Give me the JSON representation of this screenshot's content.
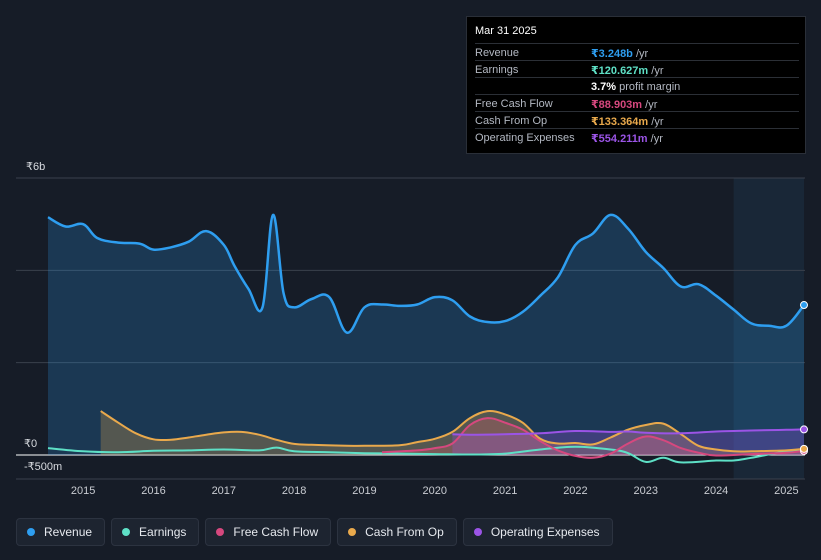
{
  "tooltip": {
    "date": "Mar 31 2025",
    "rows": [
      {
        "label": "Revenue",
        "value": "₹3.248b",
        "unit": "/yr",
        "color": "#2e9ef0"
      },
      {
        "label": "Earnings",
        "value": "₹120.627m",
        "unit": "/yr",
        "color": "#5ee0c6"
      },
      {
        "label": "",
        "value": "3.7%",
        "unit": "profit margin",
        "color": "#ffffff"
      },
      {
        "label": "Free Cash Flow",
        "value": "₹88.903m",
        "unit": "/yr",
        "color": "#d6487e"
      },
      {
        "label": "Cash From Op",
        "value": "₹133.364m",
        "unit": "/yr",
        "color": "#e9a94c"
      },
      {
        "label": "Operating Expenses",
        "value": "₹554.211m",
        "unit": "/yr",
        "color": "#9b54e6"
      }
    ]
  },
  "axis": {
    "top_label": "₹6b",
    "zero_label": "₹0",
    "bottom_label": "-₹500m"
  },
  "legend": [
    {
      "label": "Revenue",
      "color": "#2e9ef0"
    },
    {
      "label": "Earnings",
      "color": "#5ee0c6"
    },
    {
      "label": "Free Cash Flow",
      "color": "#d6487e"
    },
    {
      "label": "Cash From Op",
      "color": "#e9a94c"
    },
    {
      "label": "Operating Expenses",
      "color": "#9b54e6"
    }
  ],
  "chart_data": {
    "type": "area",
    "title": "",
    "xlabel": "",
    "ylabel": "",
    "ylim": [
      -500,
      6000
    ],
    "xlim": [
      2014.5,
      2025.25
    ],
    "xticks": [
      "2015",
      "2016",
      "2017",
      "2018",
      "2019",
      "2020",
      "2021",
      "2022",
      "2023",
      "2024",
      "2025"
    ],
    "highlight_range": [
      2024.25,
      2025.25
    ],
    "series": [
      {
        "name": "Revenue",
        "color": "#2e9ef0",
        "fill": true,
        "points": [
          [
            2014.5,
            5150
          ],
          [
            2014.75,
            4950
          ],
          [
            2015.0,
            5000
          ],
          [
            2015.2,
            4700
          ],
          [
            2015.5,
            4600
          ],
          [
            2015.8,
            4580
          ],
          [
            2016.0,
            4450
          ],
          [
            2016.25,
            4500
          ],
          [
            2016.5,
            4620
          ],
          [
            2016.75,
            4850
          ],
          [
            2017.0,
            4550
          ],
          [
            2017.15,
            4100
          ],
          [
            2017.35,
            3600
          ],
          [
            2017.55,
            3200
          ],
          [
            2017.7,
            5200
          ],
          [
            2017.85,
            3500
          ],
          [
            2018.0,
            3200
          ],
          [
            2018.25,
            3380
          ],
          [
            2018.5,
            3420
          ],
          [
            2018.75,
            2650
          ],
          [
            2019.0,
            3200
          ],
          [
            2019.25,
            3260
          ],
          [
            2019.5,
            3230
          ],
          [
            2019.75,
            3260
          ],
          [
            2020.0,
            3420
          ],
          [
            2020.25,
            3350
          ],
          [
            2020.5,
            3000
          ],
          [
            2020.75,
            2880
          ],
          [
            2021.0,
            2900
          ],
          [
            2021.25,
            3100
          ],
          [
            2021.5,
            3450
          ],
          [
            2021.75,
            3850
          ],
          [
            2022.0,
            4550
          ],
          [
            2022.25,
            4800
          ],
          [
            2022.5,
            5200
          ],
          [
            2022.75,
            4900
          ],
          [
            2023.0,
            4400
          ],
          [
            2023.25,
            4050
          ],
          [
            2023.5,
            3650
          ],
          [
            2023.75,
            3700
          ],
          [
            2024.0,
            3450
          ],
          [
            2024.25,
            3150
          ],
          [
            2024.5,
            2850
          ],
          [
            2024.75,
            2800
          ],
          [
            2025.0,
            2800
          ],
          [
            2025.25,
            3248
          ]
        ]
      },
      {
        "name": "Earnings",
        "color": "#5ee0c6",
        "fill": false,
        "points": [
          [
            2014.5,
            150
          ],
          [
            2015.0,
            80
          ],
          [
            2015.5,
            60
          ],
          [
            2016.0,
            90
          ],
          [
            2016.5,
            100
          ],
          [
            2017.0,
            120
          ],
          [
            2017.5,
            100
          ],
          [
            2017.75,
            160
          ],
          [
            2018.0,
            80
          ],
          [
            2018.5,
            60
          ],
          [
            2019.0,
            40
          ],
          [
            2019.5,
            30
          ],
          [
            2020.0,
            20
          ],
          [
            2020.5,
            10
          ],
          [
            2021.0,
            30
          ],
          [
            2021.5,
            120
          ],
          [
            2022.0,
            180
          ],
          [
            2022.5,
            120
          ],
          [
            2022.75,
            40
          ],
          [
            2023.0,
            -150
          ],
          [
            2023.25,
            -60
          ],
          [
            2023.5,
            -160
          ],
          [
            2024.0,
            -120
          ],
          [
            2024.25,
            -120
          ],
          [
            2024.5,
            -60
          ],
          [
            2025.0,
            80
          ],
          [
            2025.25,
            120
          ]
        ]
      },
      {
        "name": "Free Cash Flow",
        "color": "#d6487e",
        "fill": true,
        "points": [
          [
            2019.25,
            60
          ],
          [
            2019.75,
            100
          ],
          [
            2020.0,
            150
          ],
          [
            2020.25,
            250
          ],
          [
            2020.5,
            650
          ],
          [
            2020.75,
            800
          ],
          [
            2021.0,
            700
          ],
          [
            2021.25,
            550
          ],
          [
            2021.5,
            300
          ],
          [
            2021.75,
            100
          ],
          [
            2022.0,
            -20
          ],
          [
            2022.25,
            -60
          ],
          [
            2022.5,
            30
          ],
          [
            2022.75,
            250
          ],
          [
            2023.0,
            400
          ],
          [
            2023.25,
            320
          ],
          [
            2023.5,
            150
          ],
          [
            2023.75,
            50
          ],
          [
            2024.0,
            -10
          ],
          [
            2024.5,
            20
          ],
          [
            2025.0,
            50
          ],
          [
            2025.25,
            89
          ]
        ]
      },
      {
        "name": "Cash From Op",
        "color": "#e9a94c",
        "fill": true,
        "points": [
          [
            2015.25,
            950
          ],
          [
            2015.5,
            700
          ],
          [
            2015.75,
            470
          ],
          [
            2016.0,
            340
          ],
          [
            2016.25,
            330
          ],
          [
            2016.5,
            380
          ],
          [
            2016.75,
            440
          ],
          [
            2017.0,
            490
          ],
          [
            2017.25,
            500
          ],
          [
            2017.5,
            440
          ],
          [
            2017.75,
            330
          ],
          [
            2018.0,
            240
          ],
          [
            2018.25,
            220
          ],
          [
            2018.75,
            200
          ],
          [
            2019.0,
            200
          ],
          [
            2019.5,
            210
          ],
          [
            2019.75,
            280
          ],
          [
            2020.0,
            350
          ],
          [
            2020.25,
            500
          ],
          [
            2020.5,
            800
          ],
          [
            2020.75,
            950
          ],
          [
            2021.0,
            880
          ],
          [
            2021.25,
            700
          ],
          [
            2021.5,
            350
          ],
          [
            2021.75,
            250
          ],
          [
            2022.0,
            260
          ],
          [
            2022.25,
            230
          ],
          [
            2022.5,
            380
          ],
          [
            2022.75,
            550
          ],
          [
            2023.0,
            650
          ],
          [
            2023.25,
            680
          ],
          [
            2023.5,
            450
          ],
          [
            2023.75,
            200
          ],
          [
            2024.0,
            120
          ],
          [
            2024.25,
            80
          ],
          [
            2024.5,
            80
          ],
          [
            2025.0,
            100
          ],
          [
            2025.25,
            133
          ]
        ]
      },
      {
        "name": "Operating Expenses",
        "color": "#9b54e6",
        "fill": true,
        "points": [
          [
            2020.25,
            450
          ],
          [
            2020.5,
            440
          ],
          [
            2021.0,
            450
          ],
          [
            2021.5,
            470
          ],
          [
            2022.0,
            520
          ],
          [
            2022.5,
            500
          ],
          [
            2022.75,
            510
          ],
          [
            2023.0,
            480
          ],
          [
            2023.5,
            470
          ],
          [
            2024.0,
            510
          ],
          [
            2024.25,
            520
          ],
          [
            2024.75,
            540
          ],
          [
            2025.0,
            545
          ],
          [
            2025.25,
            554
          ]
        ]
      }
    ]
  }
}
